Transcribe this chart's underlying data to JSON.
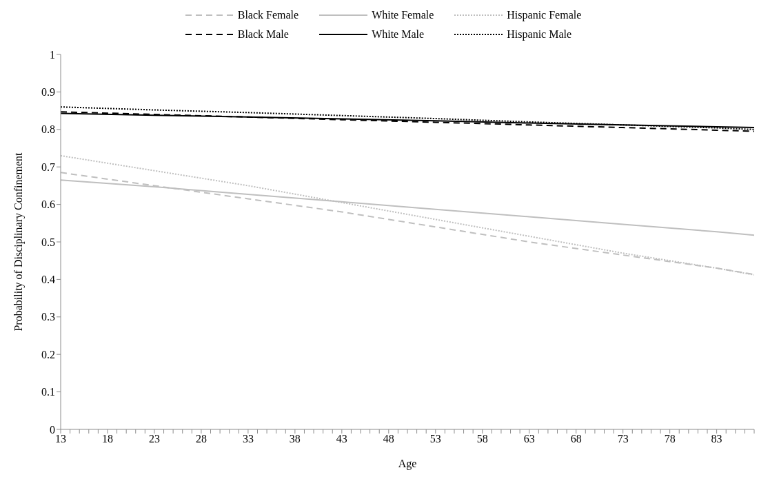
{
  "chart_data": {
    "type": "line",
    "xlabel": "Age",
    "ylabel": "Probability of Disciplinary Confinement",
    "x": [
      13,
      23,
      33,
      43,
      53,
      63,
      73,
      83,
      87
    ],
    "xlim": [
      13,
      87
    ],
    "xticks": [
      13,
      {
        "value": 14,
        "label": null
      },
      {
        "value": 15,
        "label": null
      },
      {
        "value": 16,
        "label": null
      },
      {
        "value": 17,
        "label": null
      },
      18,
      {
        "value": 19,
        "label": null
      },
      {
        "value": 20,
        "label": null
      },
      {
        "value": 21,
        "label": null
      },
      {
        "value": 22,
        "label": null
      },
      23,
      {
        "value": 24,
        "label": null
      },
      {
        "value": 25,
        "label": null
      },
      {
        "value": 26,
        "label": null
      },
      {
        "value": 27,
        "label": null
      },
      28,
      {
        "value": 29,
        "label": null
      },
      {
        "value": 30,
        "label": null
      },
      {
        "value": 31,
        "label": null
      },
      {
        "value": 32,
        "label": null
      },
      33,
      {
        "value": 34,
        "label": null
      },
      {
        "value": 35,
        "label": null
      },
      {
        "value": 36,
        "label": null
      },
      {
        "value": 37,
        "label": null
      },
      38,
      {
        "value": 39,
        "label": null
      },
      {
        "value": 40,
        "label": null
      },
      {
        "value": 41,
        "label": null
      },
      {
        "value": 42,
        "label": null
      },
      43,
      {
        "value": 44,
        "label": null
      },
      {
        "value": 45,
        "label": null
      },
      {
        "value": 46,
        "label": null
      },
      {
        "value": 47,
        "label": null
      },
      48,
      {
        "value": 49,
        "label": null
      },
      {
        "value": 50,
        "label": null
      },
      {
        "value": 51,
        "label": null
      },
      {
        "value": 52,
        "label": null
      },
      53,
      {
        "value": 54,
        "label": null
      },
      {
        "value": 55,
        "label": null
      },
      {
        "value": 56,
        "label": null
      },
      {
        "value": 57,
        "label": null
      },
      58,
      {
        "value": 59,
        "label": null
      },
      {
        "value": 60,
        "label": null
      },
      {
        "value": 61,
        "label": null
      },
      {
        "value": 62,
        "label": null
      },
      63,
      {
        "value": 64,
        "label": null
      },
      {
        "value": 65,
        "label": null
      },
      {
        "value": 66,
        "label": null
      },
      {
        "value": 67,
        "label": null
      },
      68,
      {
        "value": 69,
        "label": null
      },
      {
        "value": 70,
        "label": null
      },
      {
        "value": 71,
        "label": null
      },
      {
        "value": 72,
        "label": null
      },
      73,
      {
        "value": 74,
        "label": null
      },
      {
        "value": 75,
        "label": null
      },
      {
        "value": 76,
        "label": null
      },
      {
        "value": 77,
        "label": null
      },
      78,
      {
        "value": 79,
        "label": null
      },
      {
        "value": 80,
        "label": null
      },
      {
        "value": 81,
        "label": null
      },
      {
        "value": 82,
        "label": null
      },
      83,
      {
        "value": 84,
        "label": null
      },
      {
        "value": 85,
        "label": null
      },
      {
        "value": 86,
        "label": null
      },
      {
        "value": 87,
        "label": null
      }
    ],
    "ylim": [
      0,
      1
    ],
    "yticks": [
      0,
      0.1,
      0.2,
      0.3,
      0.4,
      0.5,
      0.6,
      0.7,
      0.8,
      0.9,
      1
    ],
    "grid": false,
    "legend": "top",
    "marker": "none",
    "series": [
      {
        "name": "Black Female",
        "color": "#bfbfbf",
        "line_style": "dashed",
        "values": [
          0.685,
          0.65,
          0.615,
          0.58,
          0.54,
          0.5,
          0.465,
          0.43,
          0.413
        ]
      },
      {
        "name": "White Female",
        "color": "#bfbfbf",
        "line_style": "solid",
        "values": [
          0.665,
          0.647,
          0.627,
          0.607,
          0.587,
          0.567,
          0.547,
          0.527,
          0.518
        ]
      },
      {
        "name": "Hispanic Female",
        "color": "#bfbfbf",
        "line_style": "dotted",
        "values": [
          0.73,
          0.69,
          0.65,
          0.605,
          0.56,
          0.515,
          0.47,
          0.43,
          0.412
        ]
      },
      {
        "name": "Black Male",
        "color": "#000000",
        "line_style": "dashed",
        "values": [
          0.847,
          0.84,
          0.833,
          0.826,
          0.819,
          0.812,
          0.805,
          0.798,
          0.795
        ]
      },
      {
        "name": "White Male",
        "color": "#000000",
        "line_style": "solid",
        "values": [
          0.843,
          0.838,
          0.833,
          0.828,
          0.823,
          0.817,
          0.812,
          0.807,
          0.805
        ]
      },
      {
        "name": "Hispanic Male",
        "color": "#000000",
        "line_style": "dotted",
        "values": [
          0.86,
          0.852,
          0.845,
          0.837,
          0.829,
          0.82,
          0.812,
          0.804,
          0.8
        ]
      }
    ]
  }
}
